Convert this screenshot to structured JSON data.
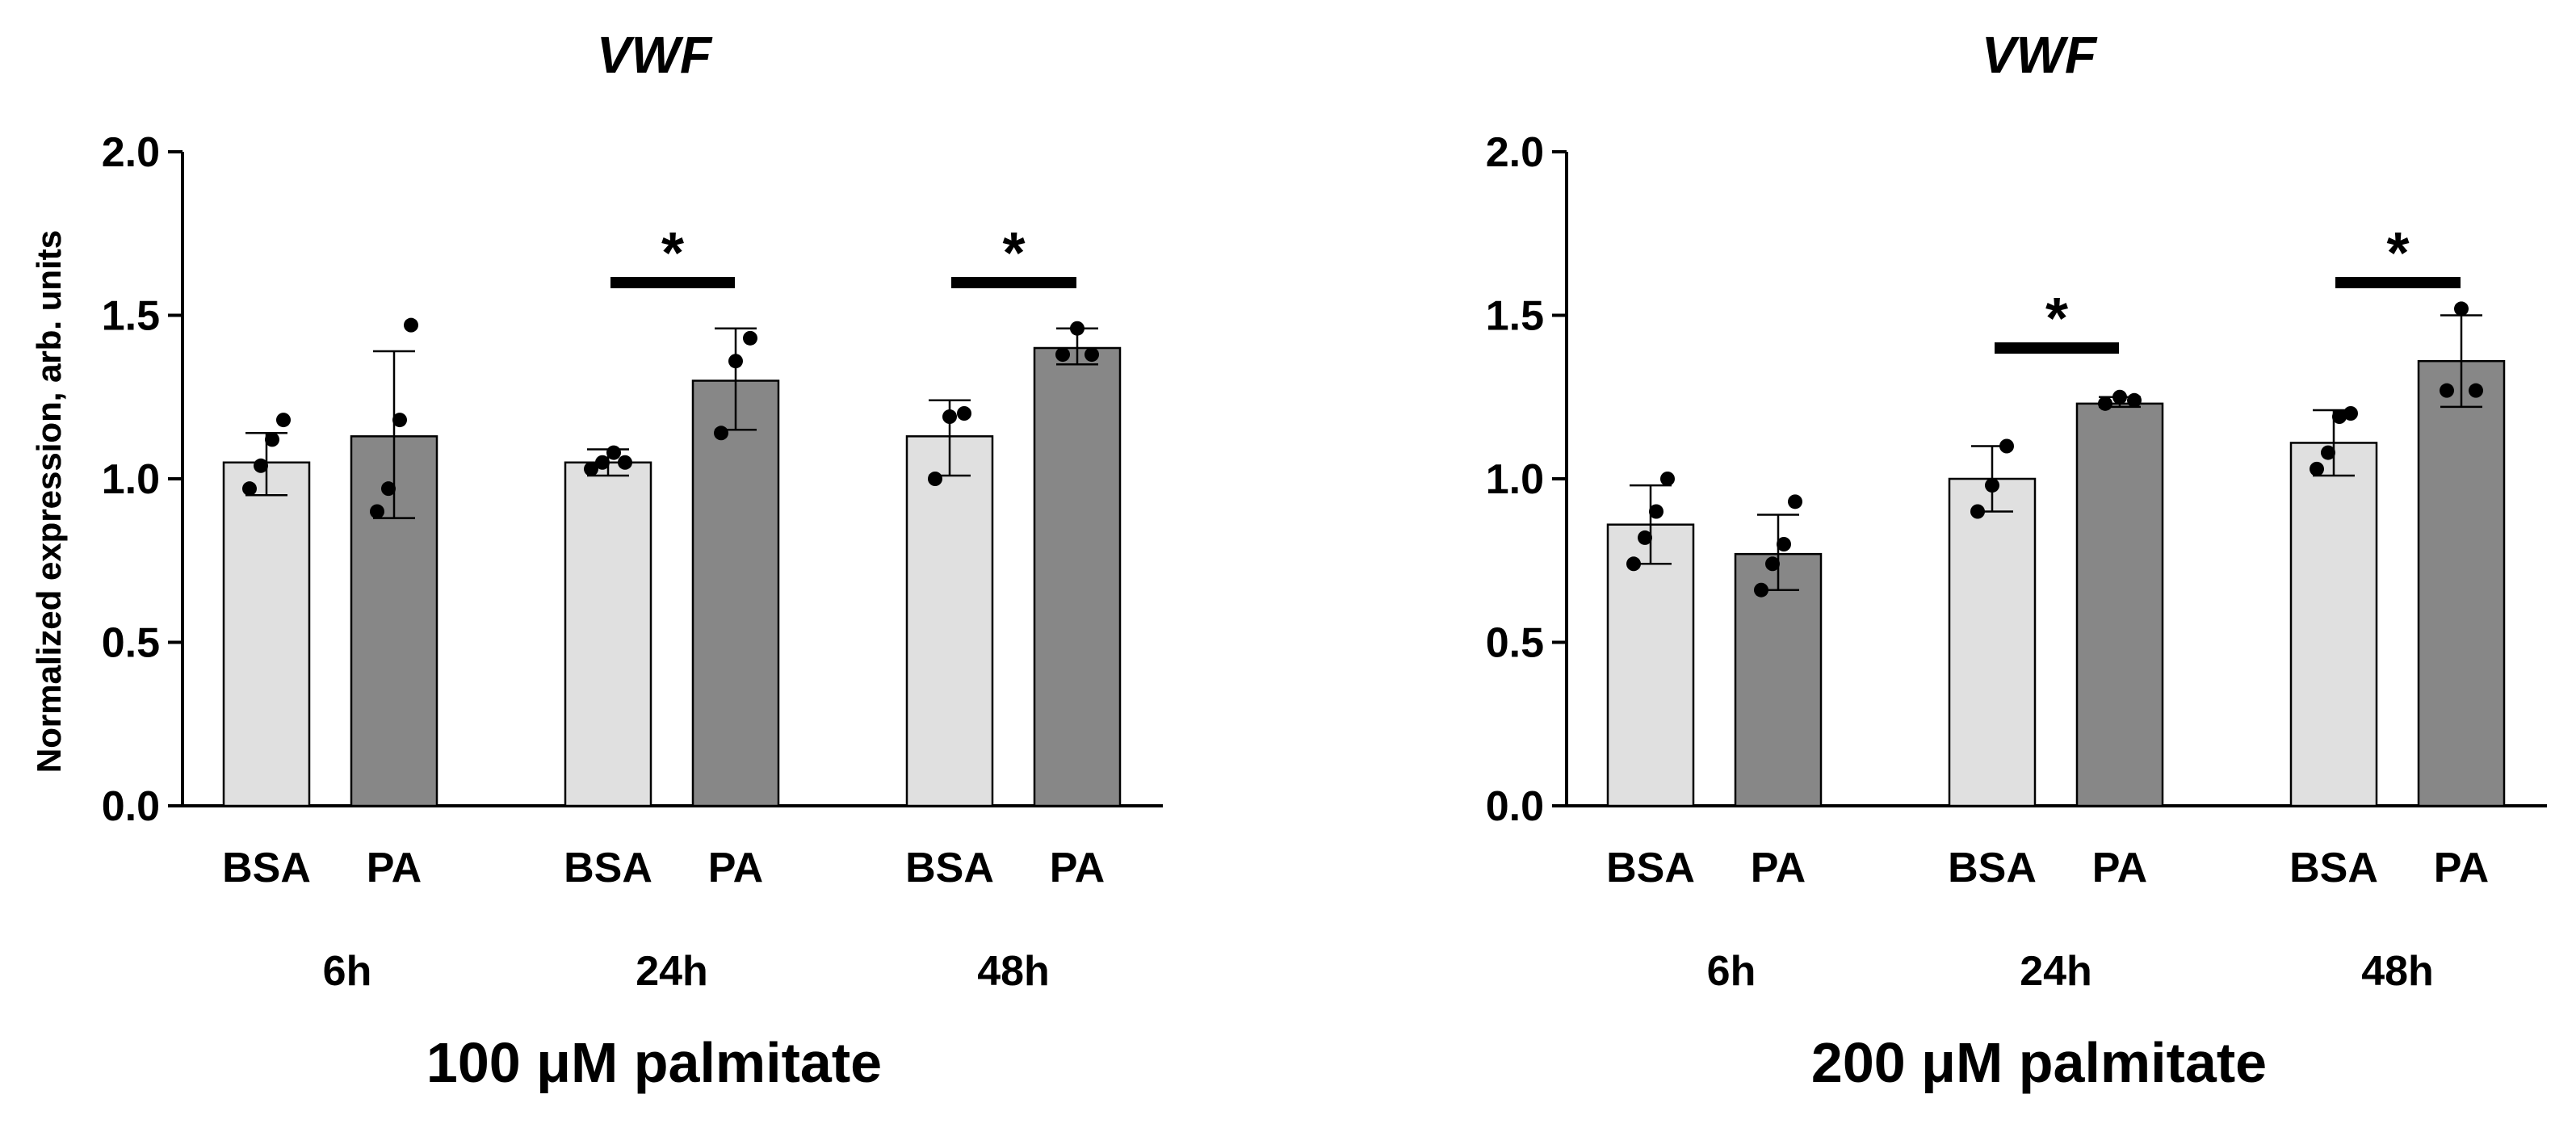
{
  "chart_data": [
    {
      "type": "bar",
      "title": "VWF",
      "xlabel": "100 μM palmitate",
      "ylabel": "Normalized expression, arb. units",
      "ylim": [
        0,
        2.0
      ],
      "yticks": [
        "0.0",
        "0.5",
        "1.0",
        "1.5",
        "2.0"
      ],
      "groups": [
        "6h",
        "24h",
        "48h"
      ],
      "categories": [
        "BSA",
        "PA"
      ],
      "colors": {
        "BSA": "#e0e0e0",
        "PA": "#878787"
      },
      "bars": [
        {
          "group": "6h",
          "label": "BSA",
          "value": 1.05,
          "err_low": 0.95,
          "err_high": 1.14,
          "points": [
            0.97,
            1.04,
            1.12,
            1.18
          ]
        },
        {
          "group": "6h",
          "label": "PA",
          "value": 1.13,
          "err_low": 0.88,
          "err_high": 1.39,
          "points": [
            0.9,
            0.97,
            1.18,
            1.47
          ]
        },
        {
          "group": "24h",
          "label": "BSA",
          "value": 1.05,
          "err_low": 1.01,
          "err_high": 1.09,
          "points": [
            1.03,
            1.05,
            1.08,
            1.05
          ]
        },
        {
          "group": "24h",
          "label": "PA",
          "value": 1.3,
          "err_low": 1.15,
          "err_high": 1.46,
          "points": [
            1.14,
            1.36,
            1.43
          ]
        },
        {
          "group": "48h",
          "label": "BSA",
          "value": 1.13,
          "err_low": 1.01,
          "err_high": 1.24,
          "points": [
            1.0,
            1.19,
            1.2
          ]
        },
        {
          "group": "48h",
          "label": "PA",
          "value": 1.4,
          "err_low": 1.35,
          "err_high": 1.46,
          "points": [
            1.38,
            1.46,
            1.38
          ]
        }
      ],
      "significance": [
        {
          "group": "24h",
          "label": "*",
          "y": 1.6
        },
        {
          "group": "48h",
          "label": "*",
          "y": 1.6
        }
      ]
    },
    {
      "type": "bar",
      "title": "VWF",
      "xlabel": "200 μM palmitate",
      "ylabel": "Normalized expression, arb. units",
      "ylim": [
        0,
        2.0
      ],
      "yticks": [
        "0.0",
        "0.5",
        "1.0",
        "1.5",
        "2.0"
      ],
      "groups": [
        "6h",
        "24h",
        "48h"
      ],
      "categories": [
        "BSA",
        "PA"
      ],
      "colors": {
        "BSA": "#e0e0e0",
        "PA": "#878787"
      },
      "bars": [
        {
          "group": "6h",
          "label": "BSA",
          "value": 0.86,
          "err_low": 0.74,
          "err_high": 0.98,
          "points": [
            0.74,
            0.82,
            0.9,
            1.0
          ]
        },
        {
          "group": "6h",
          "label": "PA",
          "value": 0.77,
          "err_low": 0.66,
          "err_high": 0.89,
          "points": [
            0.66,
            0.74,
            0.8,
            0.93
          ]
        },
        {
          "group": "24h",
          "label": "BSA",
          "value": 1.0,
          "err_low": 0.9,
          "err_high": 1.1,
          "points": [
            0.9,
            0.98,
            1.1
          ]
        },
        {
          "group": "24h",
          "label": "PA",
          "value": 1.23,
          "err_low": 1.22,
          "err_high": 1.25,
          "points": [
            1.23,
            1.25,
            1.24
          ]
        },
        {
          "group": "48h",
          "label": "BSA",
          "value": 1.11,
          "err_low": 1.01,
          "err_high": 1.21,
          "points": [
            1.03,
            1.08,
            1.19,
            1.2
          ]
        },
        {
          "group": "48h",
          "label": "PA",
          "value": 1.36,
          "err_low": 1.22,
          "err_high": 1.5,
          "points": [
            1.27,
            1.52,
            1.27
          ]
        }
      ],
      "significance": [
        {
          "group": "24h",
          "label": "*",
          "y": 1.4
        },
        {
          "group": "48h",
          "label": "*",
          "y": 1.6
        }
      ]
    }
  ]
}
